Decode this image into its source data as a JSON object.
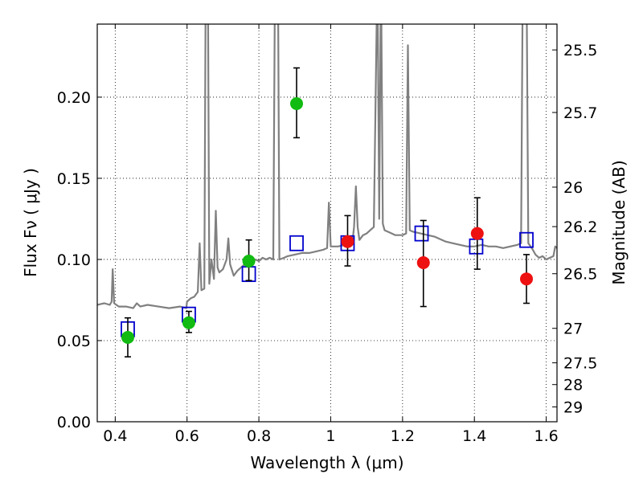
{
  "chart_data": {
    "type": "scatter",
    "xlabel": "Wavelength  λ (μm)",
    "ylabel": "Flux  Fν  ( μJy )",
    "ylabel_right": "Magnitude (AB)",
    "xlim": [
      0.35,
      1.63
    ],
    "ylim": [
      0.0,
      0.245
    ],
    "grid": true,
    "x_ticks": [
      0.4,
      0.6,
      0.8,
      1.0,
      1.2,
      1.4,
      1.6
    ],
    "x_tick_labels": [
      "0.4",
      "0.6",
      "0.8",
      "1",
      "1.2",
      "1.4",
      "1.6"
    ],
    "y_ticks": [
      0.0,
      0.05,
      0.1,
      0.15,
      0.2
    ],
    "y_tick_labels": [
      "0.00",
      "0.05",
      "0.10",
      "0.15",
      "0.20"
    ],
    "right_ticks": [
      {
        "label": "25.5",
        "mag": 25.5
      },
      {
        "label": "25.7",
        "mag": 25.7
      },
      {
        "label": "26",
        "mag": 26.0
      },
      {
        "label": "26.2",
        "mag": 26.2
      },
      {
        "label": "26.5",
        "mag": 26.5
      },
      {
        "label": "27",
        "mag": 27.0
      },
      {
        "label": "27.5",
        "mag": 27.5
      },
      {
        "label": "28",
        "mag": 28.0
      },
      {
        "label": "29",
        "mag": 29.0
      }
    ],
    "colors": {
      "template": "#808080",
      "model": "#0000cc",
      "green": "#11bb11",
      "red": "#ee1111",
      "errorbar": "#000000"
    },
    "series": [
      {
        "kind": "line",
        "points": [
          [
            0.35,
            0.072
          ],
          [
            0.37,
            0.073
          ],
          [
            0.385,
            0.072
          ],
          [
            0.39,
            0.074
          ],
          [
            0.393,
            0.094
          ],
          [
            0.397,
            0.073
          ],
          [
            0.41,
            0.071
          ],
          [
            0.43,
            0.071
          ],
          [
            0.45,
            0.07
          ],
          [
            0.46,
            0.073
          ],
          [
            0.47,
            0.071
          ],
          [
            0.49,
            0.072
          ],
          [
            0.52,
            0.071
          ],
          [
            0.55,
            0.07
          ],
          [
            0.58,
            0.071
          ],
          [
            0.598,
            0.07
          ],
          [
            0.6,
            0.074
          ],
          [
            0.61,
            0.076
          ],
          [
            0.62,
            0.077
          ],
          [
            0.63,
            0.08
          ],
          [
            0.635,
            0.11
          ],
          [
            0.64,
            0.081
          ],
          [
            0.648,
            0.082
          ],
          [
            0.652,
            0.28
          ],
          [
            0.658,
            0.28
          ],
          [
            0.662,
            0.085
          ],
          [
            0.668,
            0.1
          ],
          [
            0.675,
            0.088
          ],
          [
            0.68,
            0.13
          ],
          [
            0.685,
            0.095
          ],
          [
            0.69,
            0.092
          ],
          [
            0.7,
            0.094
          ],
          [
            0.71,
            0.1
          ],
          [
            0.715,
            0.113
          ],
          [
            0.72,
            0.097
          ],
          [
            0.73,
            0.09
          ],
          [
            0.74,
            0.093
          ],
          [
            0.75,
            0.095
          ],
          [
            0.76,
            0.097
          ],
          [
            0.77,
            0.096
          ],
          [
            0.78,
            0.098
          ],
          [
            0.79,
            0.1
          ],
          [
            0.8,
            0.099
          ],
          [
            0.81,
            0.101
          ],
          [
            0.82,
            0.1
          ],
          [
            0.83,
            0.101
          ],
          [
            0.84,
            0.1
          ],
          [
            0.845,
            0.28
          ],
          [
            0.853,
            0.28
          ],
          [
            0.857,
            0.1
          ],
          [
            0.87,
            0.101
          ],
          [
            0.88,
            0.102
          ],
          [
            0.9,
            0.103
          ],
          [
            0.92,
            0.104
          ],
          [
            0.94,
            0.104
          ],
          [
            0.96,
            0.105
          ],
          [
            0.98,
            0.106
          ],
          [
            0.99,
            0.107
          ],
          [
            0.995,
            0.135
          ],
          [
            1.0,
            0.108
          ],
          [
            1.02,
            0.108
          ],
          [
            1.04,
            0.109
          ],
          [
            1.05,
            0.11
          ],
          [
            1.06,
            0.11
          ],
          [
            1.065,
            0.12
          ],
          [
            1.07,
            0.145
          ],
          [
            1.075,
            0.12
          ],
          [
            1.08,
            0.112
          ],
          [
            1.09,
            0.115
          ],
          [
            1.1,
            0.116
          ],
          [
            1.11,
            0.118
          ],
          [
            1.12,
            0.12
          ],
          [
            1.13,
            0.28
          ],
          [
            1.135,
            0.125
          ],
          [
            1.14,
            0.28
          ],
          [
            1.145,
            0.122
          ],
          [
            1.15,
            0.118
          ],
          [
            1.16,
            0.117
          ],
          [
            1.17,
            0.116
          ],
          [
            1.18,
            0.115
          ],
          [
            1.19,
            0.115
          ],
          [
            1.2,
            0.115
          ],
          [
            1.21,
            0.116
          ],
          [
            1.215,
            0.232
          ],
          [
            1.22,
            0.118
          ],
          [
            1.23,
            0.117
          ],
          [
            1.25,
            0.116
          ],
          [
            1.27,
            0.115
          ],
          [
            1.29,
            0.114
          ],
          [
            1.3,
            0.113
          ],
          [
            1.31,
            0.112
          ],
          [
            1.32,
            0.111
          ],
          [
            1.34,
            0.11
          ],
          [
            1.36,
            0.109
          ],
          [
            1.38,
            0.108
          ],
          [
            1.4,
            0.108
          ],
          [
            1.42,
            0.109
          ],
          [
            1.44,
            0.108
          ],
          [
            1.46,
            0.108
          ],
          [
            1.48,
            0.107
          ],
          [
            1.5,
            0.108
          ],
          [
            1.52,
            0.109
          ],
          [
            1.53,
            0.11
          ],
          [
            1.535,
            0.28
          ],
          [
            1.545,
            0.28
          ],
          [
            1.55,
            0.11
          ],
          [
            1.56,
            0.107
          ],
          [
            1.57,
            0.103
          ],
          [
            1.58,
            0.101
          ],
          [
            1.59,
            0.102
          ],
          [
            1.6,
            0.1
          ],
          [
            1.61,
            0.101
          ],
          [
            1.62,
            0.102
          ],
          [
            1.625,
            0.108
          ],
          [
            1.63,
            0.107
          ]
        ]
      },
      {
        "kind": "squares",
        "points": [
          [
            0.435,
            0.057
          ],
          [
            0.605,
            0.066
          ],
          [
            0.772,
            0.091
          ],
          [
            0.905,
            0.11
          ],
          [
            1.047,
            0.11
          ],
          [
            1.253,
            0.116
          ],
          [
            1.405,
            0.108
          ],
          [
            1.545,
            0.112
          ]
        ]
      },
      {
        "kind": "green-points",
        "points": [
          {
            "x": 0.435,
            "y": 0.052,
            "lo": 0.04,
            "hi": 0.064
          },
          {
            "x": 0.605,
            "y": 0.061,
            "lo": 0.055,
            "hi": 0.068
          },
          {
            "x": 0.772,
            "y": 0.099,
            "lo": 0.087,
            "hi": 0.112
          },
          {
            "x": 0.905,
            "y": 0.196,
            "lo": 0.175,
            "hi": 0.218
          }
        ]
      },
      {
        "kind": "red-points",
        "points": [
          {
            "x": 1.047,
            "y": 0.111,
            "lo": 0.096,
            "hi": 0.127
          },
          {
            "x": 1.258,
            "y": 0.098,
            "lo": 0.071,
            "hi": 0.124
          },
          {
            "x": 1.408,
            "y": 0.116,
            "lo": 0.094,
            "hi": 0.138
          },
          {
            "x": 1.545,
            "y": 0.088,
            "lo": 0.073,
            "hi": 0.103
          }
        ]
      }
    ]
  }
}
